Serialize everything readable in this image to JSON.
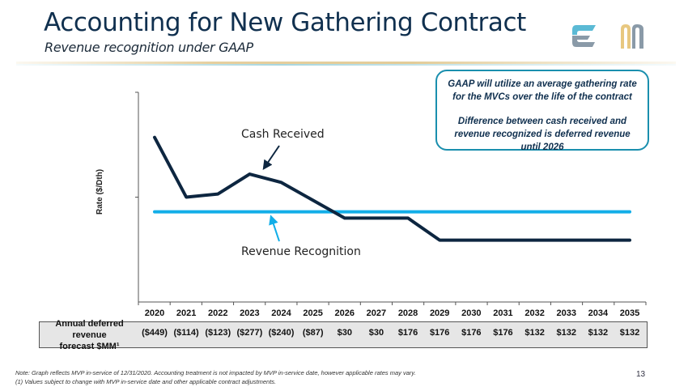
{
  "header": {
    "title": "Accounting for New Gathering Contract",
    "subtitle": "Revenue recognition under GAAP",
    "logos": [
      "equitrans-e-logo",
      "mountain-valley-logo"
    ],
    "colors": {
      "title": "#10304f",
      "logo_e_top": "#5bbad5",
      "logo_e_bottom": "#8a9aa8",
      "logo_m_gold": "#e8c880",
      "logo_m_gray": "#8a9aa8"
    }
  },
  "callout": {
    "line1": "GAAP will utilize an average gathering rate for the MVCs over the life of the contract",
    "line2": "Difference between cash received and revenue recognized is deferred revenue until 2026",
    "border_color": "#1a8fae"
  },
  "chart_data": {
    "type": "line",
    "title": "",
    "xlabel": "",
    "ylabel": "Rate ($/Dth)",
    "x": [
      "2020",
      "2021",
      "2022",
      "2023",
      "2024",
      "2025",
      "2026",
      "2027",
      "2028",
      "2029",
      "2030",
      "2031",
      "2032",
      "2033",
      "2034",
      "2035"
    ],
    "ylim": [
      0,
      2
    ],
    "y_ticks_labeled": false,
    "grid": false,
    "series": [
      {
        "name": "Cash Received",
        "color": "#0d2640",
        "values": [
          1.57,
          1.0,
          1.03,
          1.22,
          1.14,
          0.97,
          0.8,
          0.8,
          0.8,
          0.59,
          0.59,
          0.59,
          0.59,
          0.59,
          0.59,
          0.59
        ]
      },
      {
        "name": "Revenue Recognition",
        "color": "#12aee8",
        "values": [
          0.86,
          0.86,
          0.86,
          0.86,
          0.86,
          0.86,
          0.86,
          0.86,
          0.86,
          0.86,
          0.86,
          0.86,
          0.86,
          0.86,
          0.86,
          0.86
        ]
      }
    ],
    "annotations": [
      {
        "text": "Cash Received",
        "points_to": "Cash Received"
      },
      {
        "text": "Revenue Recognition",
        "points_to": "Revenue Recognition"
      }
    ]
  },
  "table": {
    "row_label_line1": "Annual deferred revenue",
    "row_label_line2": "forecast $MM¹",
    "values": [
      "($449)",
      "($114)",
      "($123)",
      "($277)",
      "($240)",
      "($87)",
      "$30",
      "$30",
      "$176",
      "$176",
      "$176",
      "$176",
      "$132",
      "$132",
      "$132",
      "$132"
    ]
  },
  "footer": {
    "note1": "Note: Graph reflects MVP in-service of 12/31/2020.  Accounting treatment is not impacted by MVP in-service date, however applicable rates may vary.",
    "note2": "(1) Values subject to change with MVP in-service date and other applicable contract adjustments.",
    "page_number": "13"
  }
}
